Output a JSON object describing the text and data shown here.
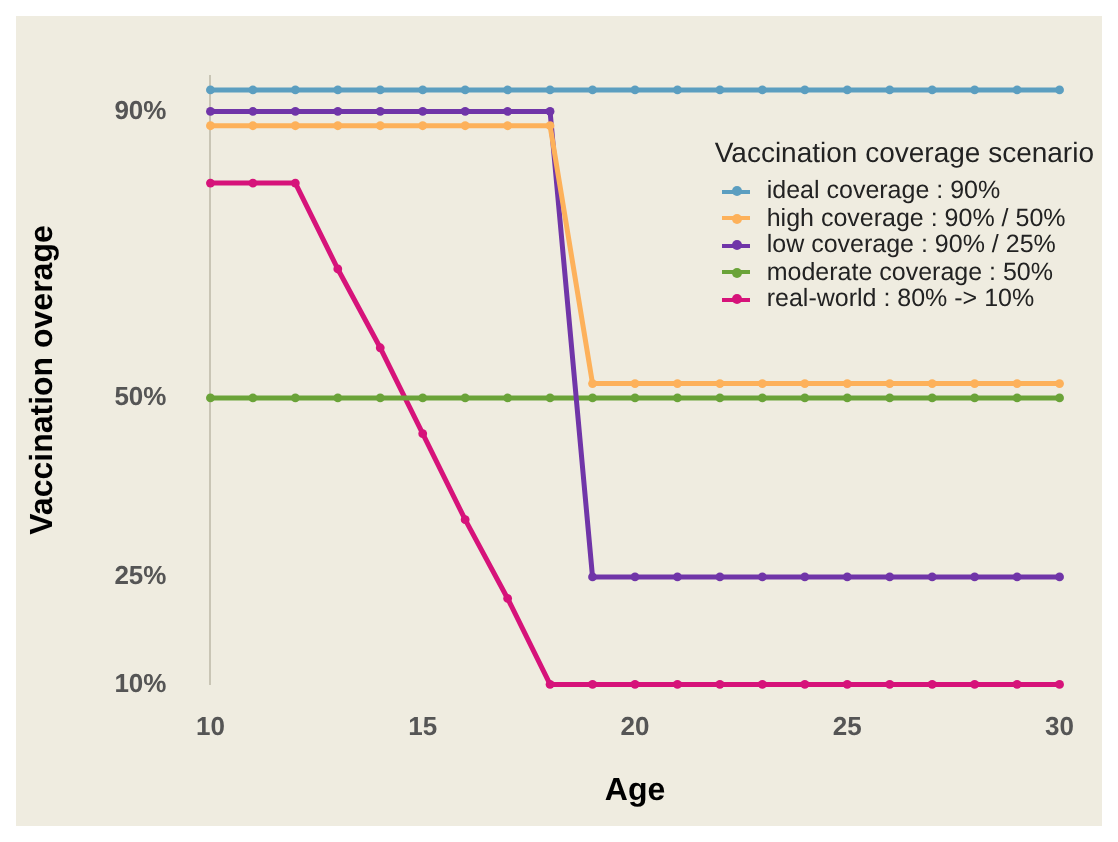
{
  "chart_data": {
    "type": "line",
    "xlabel": "Age",
    "ylabel": "Vaccination overage",
    "legend_title": "Vaccination coverage scenario",
    "legend": "top right",
    "grid": false,
    "marker": "circle",
    "line_style": "solid",
    "x": [
      10,
      11,
      12,
      13,
      14,
      15,
      16,
      17,
      18,
      19,
      20,
      21,
      22,
      23,
      24,
      25,
      26,
      27,
      28,
      29,
      30
    ],
    "xlim": [
      10,
      30
    ],
    "xticks": [
      10,
      15,
      20,
      25,
      30
    ],
    "ylim": [
      10,
      95
    ],
    "yticks": [
      {
        "value": 10,
        "label": "10%"
      },
      {
        "value": 25,
        "label": "25%"
      },
      {
        "value": 50,
        "label": "50%"
      },
      {
        "value": 90,
        "label": "90%"
      }
    ],
    "series": [
      {
        "name": "ideal coverage : 90%",
        "color": "#5b9ec0",
        "values": [
          93,
          93,
          93,
          93,
          93,
          93,
          93,
          93,
          93,
          93,
          93,
          93,
          93,
          93,
          93,
          93,
          93,
          93,
          93,
          93,
          93
        ]
      },
      {
        "name": "high coverage : 90% / 50%",
        "color": "#fdb15a",
        "values": [
          88,
          88,
          88,
          88,
          88,
          88,
          88,
          88,
          88,
          52,
          52,
          52,
          52,
          52,
          52,
          52,
          52,
          52,
          52,
          52,
          52
        ]
      },
      {
        "name": "low coverage : 90% / 25%",
        "color": "#7035a8",
        "values": [
          90,
          90,
          90,
          90,
          90,
          90,
          90,
          90,
          90,
          25,
          25,
          25,
          25,
          25,
          25,
          25,
          25,
          25,
          25,
          25,
          25
        ]
      },
      {
        "name": "moderate coverage : 50%",
        "color": "#6aa338",
        "values": [
          50,
          50,
          50,
          50,
          50,
          50,
          50,
          50,
          50,
          50,
          50,
          50,
          50,
          50,
          50,
          50,
          50,
          50,
          50,
          50,
          50
        ]
      },
      {
        "name": "real-world : 80% -> 10%",
        "color": "#d6137a",
        "values": [
          80,
          80,
          80,
          68,
          57,
          45,
          33,
          22,
          10,
          10,
          10,
          10,
          10,
          10,
          10,
          10,
          10,
          10,
          10,
          10,
          10
        ]
      }
    ]
  }
}
